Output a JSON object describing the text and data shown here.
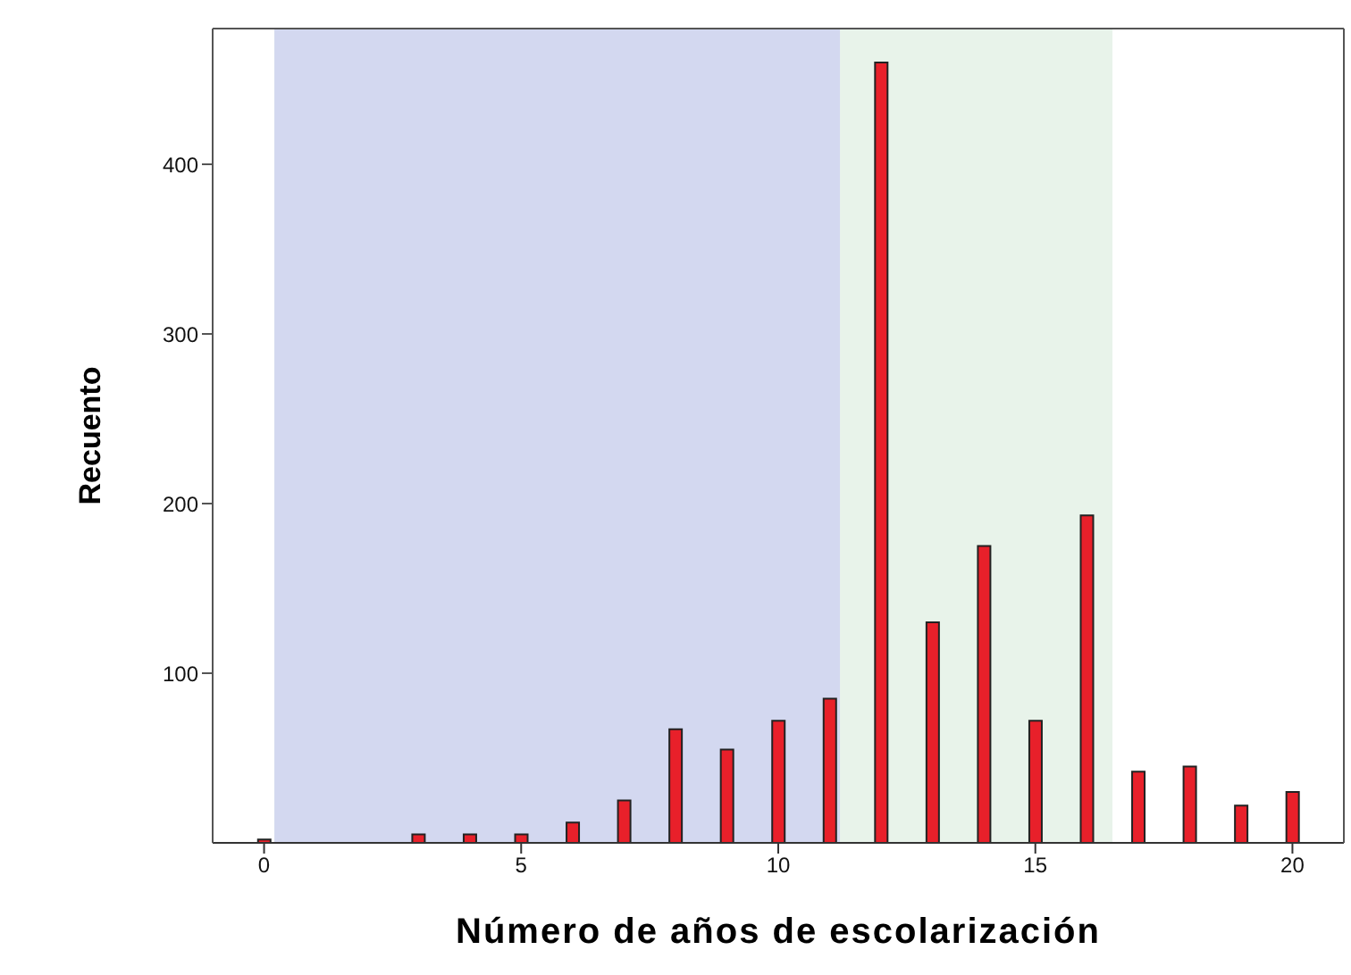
{
  "chart_data": {
    "type": "bar",
    "xlabel": "Número de años de escolarización",
    "ylabel": "Recuento",
    "x": [
      0,
      1,
      2,
      3,
      4,
      5,
      6,
      7,
      8,
      9,
      10,
      11,
      12,
      13,
      14,
      15,
      16,
      17,
      18,
      19,
      20
    ],
    "values": [
      2,
      0,
      0,
      5,
      5,
      5,
      12,
      25,
      67,
      55,
      72,
      85,
      460,
      130,
      175,
      72,
      193,
      42,
      45,
      22,
      30
    ],
    "color": "#e8202a",
    "xlim": [
      -1,
      21
    ],
    "xticks": [
      0,
      5,
      10,
      15,
      20
    ],
    "ylim": [
      0,
      480
    ],
    "yticks": [
      100,
      200,
      300,
      400
    ],
    "bands": [
      {
        "axis": "x",
        "from": 0.2,
        "to": 16.5,
        "color": "#e8f3ea"
      },
      {
        "axis": "x",
        "from": 0.2,
        "to": 11.2,
        "color": "#d3d8f0"
      }
    ],
    "grid": false,
    "legend": false
  }
}
